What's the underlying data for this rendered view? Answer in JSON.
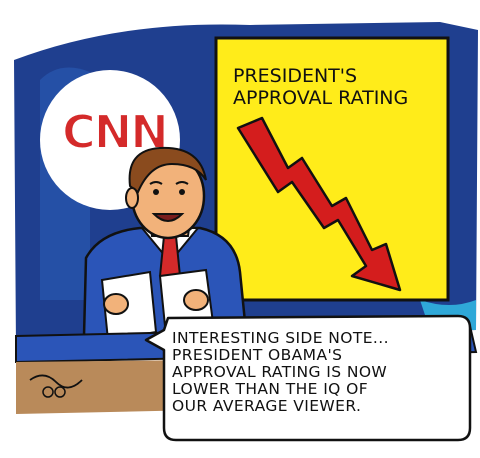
{
  "cartoon": {
    "network_logo": "CNN",
    "chart_title_line1": "PRESIDENT'S",
    "chart_title_line2": "APPROVAL RATING",
    "speech_lines": [
      "INTERESTING SIDE NOTE...",
      "PRESIDENT OBAMA'S",
      "APPROVAL RATING IS NOW",
      "LOWER THAN THE IQ OF",
      "OUR AVERAGE VIEWER."
    ],
    "colors": {
      "backdrop_blue": "#1f3f8f",
      "logo_red": "#d42a2a",
      "chart_yellow": "#ffec1a",
      "arrow_red": "#d41d1d",
      "suit_blue": "#2b55b8",
      "tie_red": "#d42a2a",
      "skin": "#f2b27a",
      "hair_brown": "#8a4b1e"
    },
    "arrow_icon": "downward-zigzag-arrow-icon"
  }
}
